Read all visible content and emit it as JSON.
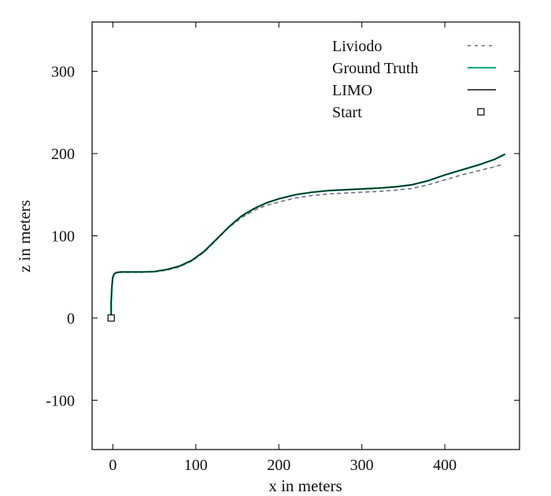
{
  "chart_data": {
    "type": "line",
    "title": "",
    "xlabel": "x in meters",
    "ylabel": "z in meters",
    "xlim": [
      -25,
      490
    ],
    "ylim": [
      -160,
      360
    ],
    "xticks": [
      0,
      100,
      200,
      300,
      400
    ],
    "yticks": [
      -100,
      0,
      100,
      200,
      300
    ],
    "xtick_labels": [
      "0",
      "100",
      "200",
      "300",
      "400"
    ],
    "ytick_labels": [
      "-100",
      "0",
      "100",
      "200",
      "300"
    ],
    "grid": false,
    "legend_position": "top-right",
    "series": [
      {
        "name": "Liviodo",
        "style": "dashed",
        "color": "#6b6f8a",
        "x": [
          -2,
          -2,
          -1,
          0,
          2,
          5,
          10,
          20,
          35,
          50,
          65,
          80,
          95,
          110,
          125,
          140,
          155,
          170,
          185,
          200,
          220,
          240,
          260,
          280,
          300,
          320,
          340,
          360,
          380,
          400,
          420,
          440,
          460,
          470
        ],
        "z": [
          0,
          20,
          40,
          50,
          54,
          55,
          55.5,
          55.5,
          55.5,
          56,
          58,
          62,
          69,
          80,
          95,
          110,
          122,
          131,
          137,
          141,
          146,
          149,
          151,
          152,
          153,
          154,
          155.5,
          157.5,
          162,
          168,
          174,
          179,
          184,
          187
        ]
      },
      {
        "name": "Ground Truth",
        "style": "solid",
        "color": "#10a870",
        "x": [
          -2,
          -2,
          -1,
          0,
          2,
          5,
          10,
          20,
          35,
          50,
          65,
          80,
          95,
          110,
          125,
          140,
          155,
          170,
          185,
          200,
          220,
          240,
          260,
          280,
          300,
          320,
          340,
          360,
          380,
          400,
          420,
          440,
          460,
          472
        ],
        "z": [
          0,
          20,
          40,
          50,
          54,
          55.5,
          56,
          56,
          56,
          56.5,
          59,
          63,
          70,
          81,
          96,
          111,
          124,
          133,
          140,
          145,
          150,
          153,
          155,
          156,
          157,
          158,
          159.5,
          162,
          167,
          174,
          180,
          186,
          193,
          199
        ]
      },
      {
        "name": "LIMO",
        "style": "solid",
        "color": "#111111",
        "x": [
          -2,
          -2,
          -1,
          0,
          2,
          5,
          10,
          20,
          35,
          50,
          65,
          80,
          95,
          110,
          125,
          140,
          155,
          170,
          185,
          200,
          220,
          240,
          260,
          280,
          300,
          320,
          340,
          360,
          380,
          400,
          420,
          440,
          460,
          472
        ],
        "z": [
          0,
          20,
          40,
          50,
          54,
          55.5,
          56,
          56,
          56,
          56.5,
          59,
          63,
          70,
          81,
          96,
          111,
          124,
          133,
          140,
          145,
          150,
          153,
          155,
          156,
          157,
          158,
          159.5,
          162,
          167,
          174,
          180,
          186,
          193,
          199
        ]
      }
    ],
    "markers": [
      {
        "name": "Start",
        "shape": "open-square",
        "x": -2,
        "z": 0
      }
    ],
    "legend": [
      {
        "label": "Liviodo",
        "symbol": "dashed-line"
      },
      {
        "label": "Ground Truth",
        "symbol": "solid-line-green"
      },
      {
        "label": "LIMO",
        "symbol": "solid-line-black"
      },
      {
        "label": "Start",
        "symbol": "open-square"
      }
    ]
  }
}
